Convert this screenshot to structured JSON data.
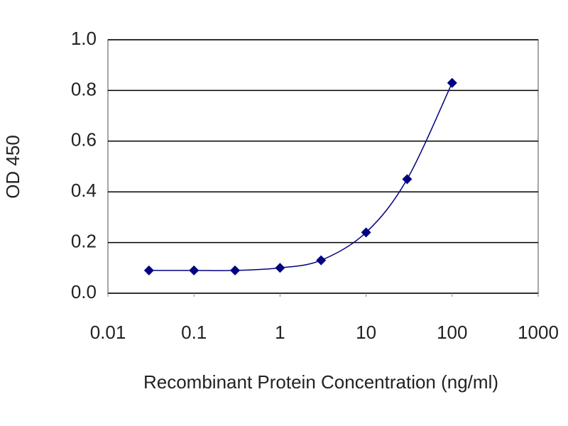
{
  "chart_data": {
    "type": "line",
    "x_label": "Recombinant Protein Concentration (ng/ml)",
    "y_label": "OD 450",
    "x": [
      0.03,
      0.1,
      0.3,
      1,
      3,
      10,
      30,
      100
    ],
    "series": [
      {
        "color": "#000080",
        "values": [
          0.09,
          0.09,
          0.09,
          0.1,
          0.13,
          0.24,
          0.45,
          0.83
        ]
      }
    ],
    "x_log": true,
    "xlim": [
      0.01,
      1000
    ],
    "xticks": [
      0.01,
      0.1,
      1,
      10,
      100,
      1000
    ],
    "ylim": [
      0,
      1
    ],
    "yticks": [
      {
        "value": 0,
        "label": "0.0"
      },
      {
        "value": 0.2,
        "label": "0.2"
      },
      {
        "value": 0.4,
        "label": "0.4"
      },
      {
        "value": 0.6,
        "label": "0.6"
      },
      {
        "value": 0.8,
        "label": "0.8"
      },
      {
        "value": 1,
        "label": "1.0"
      }
    ],
    "grid": true
  }
}
